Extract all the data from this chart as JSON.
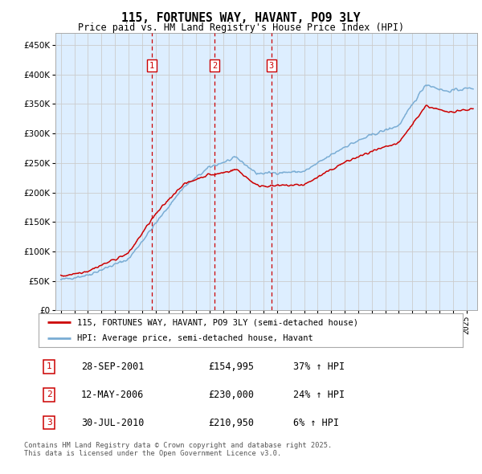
{
  "title": "115, FORTUNES WAY, HAVANT, PO9 3LY",
  "subtitle": "Price paid vs. HM Land Registry's House Price Index (HPI)",
  "legend_line1": "115, FORTUNES WAY, HAVANT, PO9 3LY (semi-detached house)",
  "legend_line2": "HPI: Average price, semi-detached house, Havant",
  "footnote": "Contains HM Land Registry data © Crown copyright and database right 2025.\nThis data is licensed under the Open Government Licence v3.0.",
  "sale_color": "#cc0000",
  "hpi_color": "#7aadd4",
  "grid_color": "#cccccc",
  "chart_bg": "#ddeeff",
  "background_color": "#ffffff",
  "sale_points": [
    {
      "date": 2001.74,
      "price": 154995,
      "label": "1"
    },
    {
      "date": 2006.36,
      "price": 230000,
      "label": "2"
    },
    {
      "date": 2010.58,
      "price": 210950,
      "label": "3"
    }
  ],
  "table_entries": [
    {
      "num": "1",
      "date": "28-SEP-2001",
      "price": "£154,995",
      "change": "37% ↑ HPI"
    },
    {
      "num": "2",
      "date": "12-MAY-2006",
      "price": "£230,000",
      "change": "24% ↑ HPI"
    },
    {
      "num": "3",
      "date": "30-JUL-2010",
      "price": "£210,950",
      "change": "6% ↑ HPI"
    }
  ],
  "ylim": [
    0,
    470000
  ],
  "xlim_start": 1994.6,
  "xlim_end": 2025.8,
  "yticks": [
    0,
    50000,
    100000,
    150000,
    200000,
    250000,
    300000,
    350000,
    400000,
    450000
  ]
}
